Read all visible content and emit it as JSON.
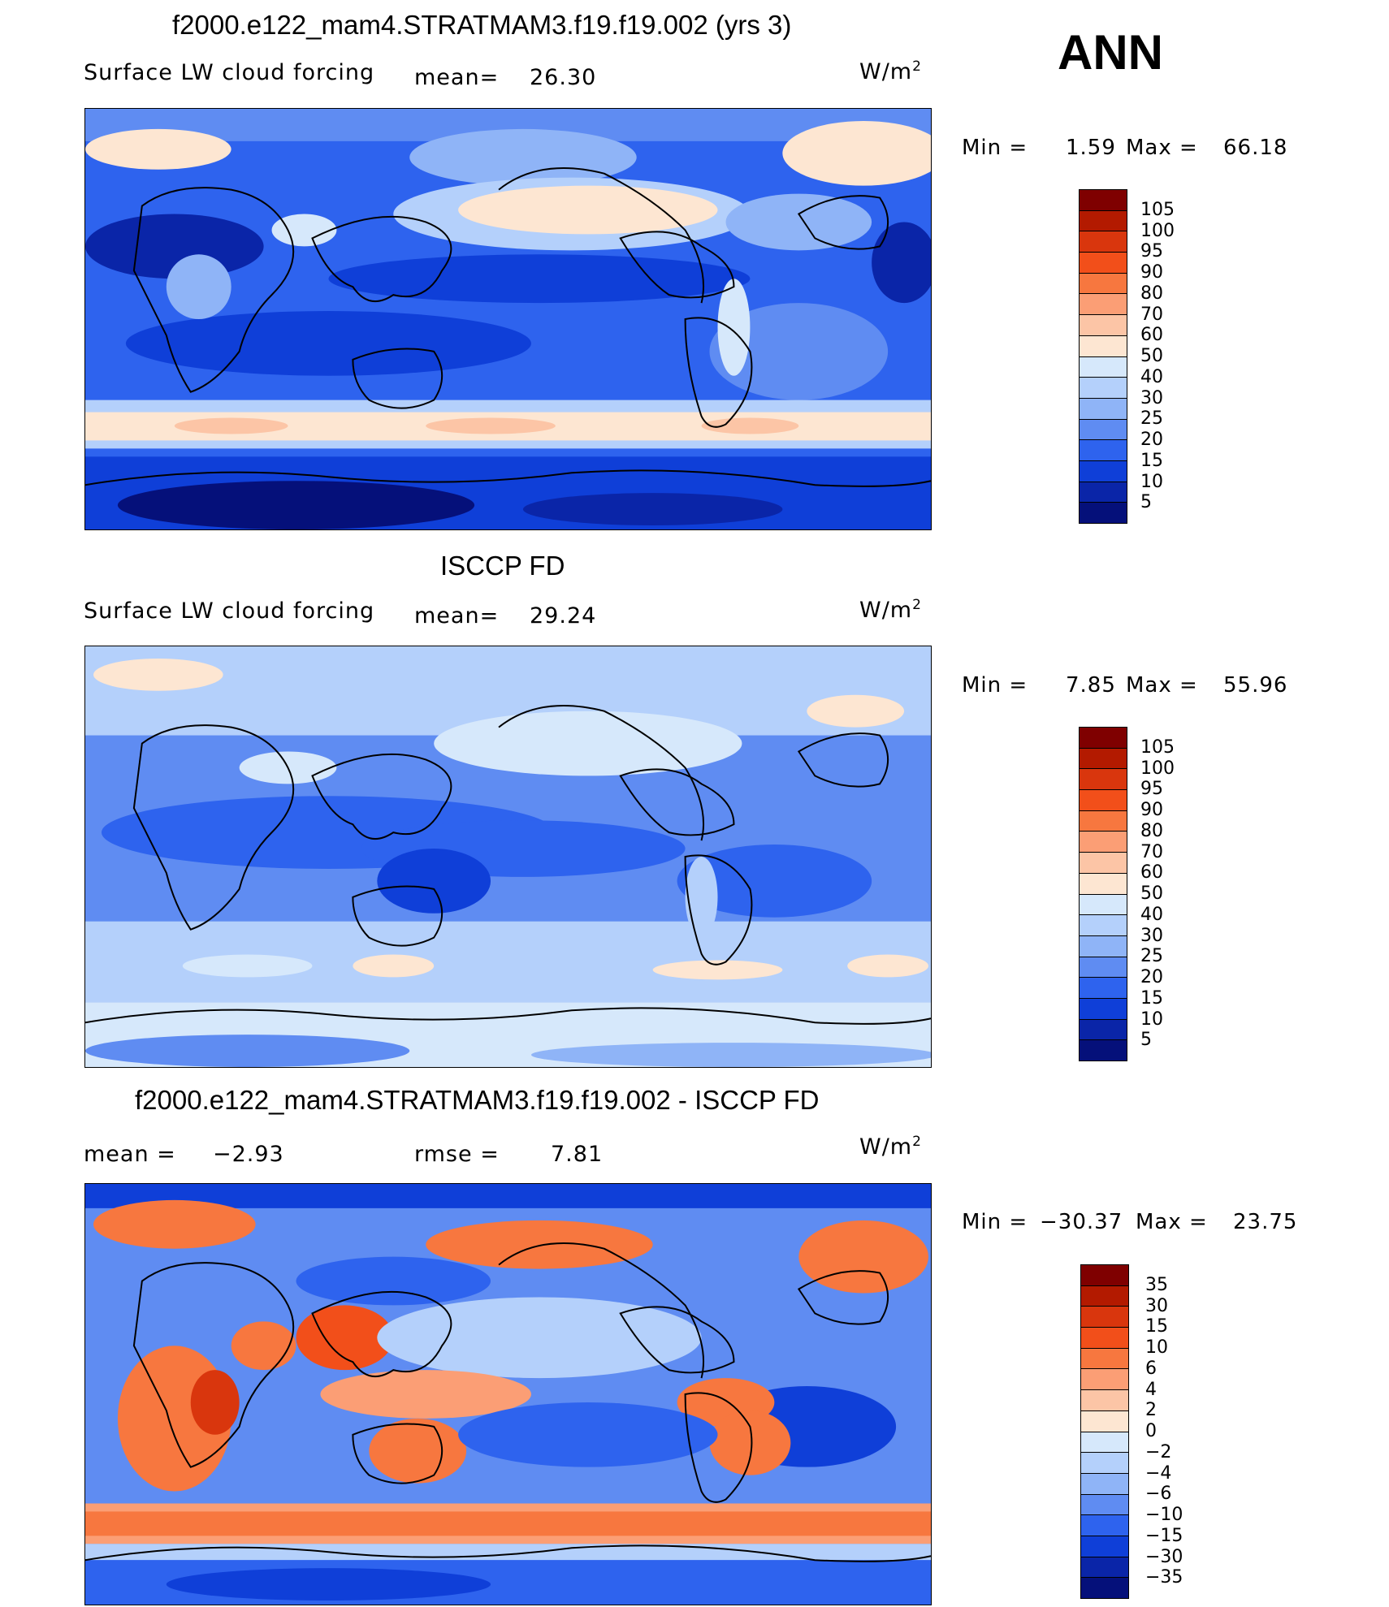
{
  "header": {
    "season": "ANN"
  },
  "panels": [
    {
      "title": "f2000.e122_mam4.STRATMAM3.f19.f19.002 (yrs 3)",
      "field_label": "Surface LW cloud forcing",
      "stat1_label": "mean=",
      "stat1_value": "26.30",
      "units_base": "W/m",
      "units_exp": "2",
      "min_label": "Min =",
      "min_value": "1.59",
      "max_label": "Max =",
      "max_value": "66.18",
      "colorbar_labels": [
        "105",
        "100",
        "95",
        "90",
        "80",
        "70",
        "60",
        "50",
        "40",
        "30",
        "25",
        "20",
        "15",
        "10",
        "5"
      ]
    },
    {
      "title": "ISCCP FD",
      "field_label": "Surface LW cloud forcing",
      "stat1_label": "mean=",
      "stat1_value": "29.24",
      "units_base": "W/m",
      "units_exp": "2",
      "min_label": "Min =",
      "min_value": "7.85",
      "max_label": "Max =",
      "max_value": "55.96",
      "colorbar_labels": [
        "105",
        "100",
        "95",
        "90",
        "80",
        "70",
        "60",
        "50",
        "40",
        "30",
        "25",
        "20",
        "15",
        "10",
        "5"
      ]
    },
    {
      "title": "f2000.e122_mam4.STRATMAM3.f19.f19.002 - ISCCP FD",
      "stat1_label": "mean =",
      "stat1_value": "−2.93",
      "stat2_label": "rmse =",
      "stat2_value": "7.81",
      "units_base": "W/m",
      "units_exp": "2",
      "min_label": "Min =",
      "min_value": "−30.37",
      "max_label": "Max =",
      "max_value": "23.75",
      "colorbar_labels": [
        "35",
        "30",
        "15",
        "10",
        "6",
        "4",
        "2",
        "0",
        "−2",
        "−4",
        "−6",
        "−10",
        "−15",
        "−30",
        "−35"
      ]
    }
  ],
  "colors": {
    "abs_scale": [
      "#7f0000",
      "#b31a00",
      "#d9360d",
      "#f24f1a",
      "#f7773f",
      "#fb9e75",
      "#fcc5a6",
      "#fde6d2",
      "#d6e8fb",
      "#b4d0fb",
      "#8fb4f7",
      "#5f8cf2",
      "#2e63ee",
      "#0f3fd8",
      "#0a25a8",
      "#05107a"
    ],
    "diff_scale": [
      "#7f0000",
      "#b31a00",
      "#d9360d",
      "#f24f1a",
      "#f7773f",
      "#fb9e75",
      "#fcc5a6",
      "#fde6d2",
      "#d6e8fb",
      "#b4d0fb",
      "#8fb4f7",
      "#5f8cf2",
      "#2e63ee",
      "#0f3fd8",
      "#0a25a8",
      "#05107a"
    ]
  }
}
